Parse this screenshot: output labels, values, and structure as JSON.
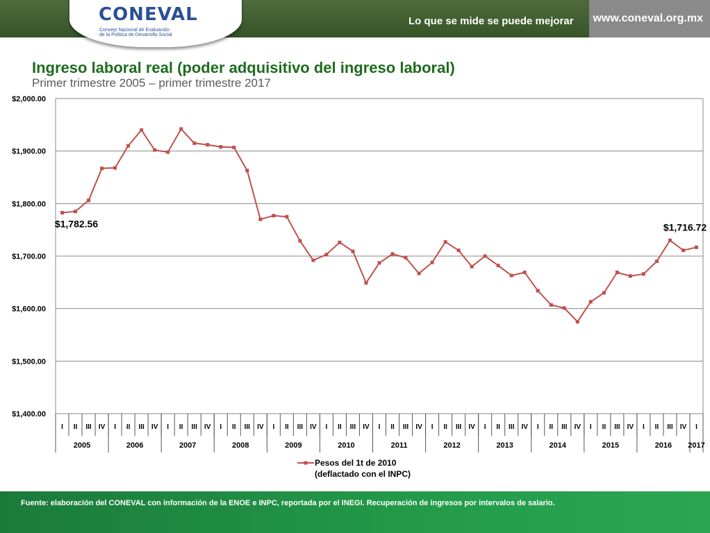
{
  "header": {
    "logo": {
      "name": "CONEVAL",
      "line1": "Consejo Nacional de Evaluación",
      "line2": "de la Política de Desarrollo Social"
    },
    "tagline": "Lo que se mide se puede mejorar",
    "url": "www.coneval.org.mx"
  },
  "colors": {
    "series": "#c0504d",
    "title": "#1e6b1e",
    "footer": "#239b4a",
    "header": "#355428"
  },
  "footer": {
    "source": "Fuente: elaboración del CONEVAL con información de la ENOE e INPC, reportada por el INEGI. Recuperación de ingresos por intervalos de salario."
  },
  "chart_data": {
    "type": "line",
    "title": "Ingreso laboral real (poder adquisitivo del ingreso laboral)",
    "subtitle": "Primer trimestre 2005 – primer trimestre 2017",
    "quarters": [
      "I",
      "II",
      "III",
      "IV",
      "I",
      "II",
      "III",
      "IV",
      "I",
      "II",
      "III",
      "IV",
      "I",
      "II",
      "III",
      "IV",
      "I",
      "II",
      "III",
      "IV",
      "I",
      "II",
      "III",
      "IV",
      "I",
      "II",
      "III",
      "IV",
      "I",
      "II",
      "III",
      "IV",
      "I",
      "II",
      "III",
      "IV",
      "I",
      "II",
      "III",
      "IV",
      "I",
      "II",
      "III",
      "IV",
      "I",
      "II",
      "III",
      "IV",
      "I"
    ],
    "years": [
      {
        "label": "2005",
        "quarters": 4
      },
      {
        "label": "2006",
        "quarters": 4
      },
      {
        "label": "2007",
        "quarters": 4
      },
      {
        "label": "2008",
        "quarters": 4
      },
      {
        "label": "2009",
        "quarters": 4
      },
      {
        "label": "2010",
        "quarters": 4
      },
      {
        "label": "2011",
        "quarters": 4
      },
      {
        "label": "2012",
        "quarters": 4
      },
      {
        "label": "2013",
        "quarters": 4
      },
      {
        "label": "2014",
        "quarters": 4
      },
      {
        "label": "2015",
        "quarters": 4
      },
      {
        "label": "2016",
        "quarters": 4
      },
      {
        "label": "2017",
        "quarters": 1
      }
    ],
    "series": [
      {
        "name": "Pesos del 1t  de 2010",
        "name_line2": "(deflactado con el INPC)",
        "values": [
          1782.56,
          1785,
          1806,
          1867,
          1868,
          1910,
          1940,
          1902,
          1898,
          1942,
          1915,
          1912,
          1908,
          1907,
          1863,
          1770,
          1777,
          1775,
          1729,
          1692,
          1703,
          1726,
          1709,
          1649,
          1687,
          1704,
          1697,
          1667,
          1688,
          1727,
          1711,
          1680,
          1700,
          1682,
          1663,
          1669,
          1634,
          1607,
          1601,
          1575,
          1613,
          1630,
          1669,
          1662,
          1666,
          1690,
          1730,
          1711,
          1716.72
        ]
      }
    ],
    "ylim": [
      1400,
      2000
    ],
    "yticks": [
      1400,
      1500,
      1600,
      1700,
      1800,
      1900,
      2000
    ],
    "ytick_labels": [
      "$1,400.00",
      "$1,500.00",
      "$1,600.00",
      "$1,700.00",
      "$1,800.00",
      "$1,900.00",
      "$2,000.00"
    ],
    "annotations": [
      {
        "index": 0,
        "text": "$1,782.56"
      },
      {
        "index": 48,
        "text": "$1,716.72"
      }
    ],
    "grid": true,
    "legend": "bottom"
  }
}
